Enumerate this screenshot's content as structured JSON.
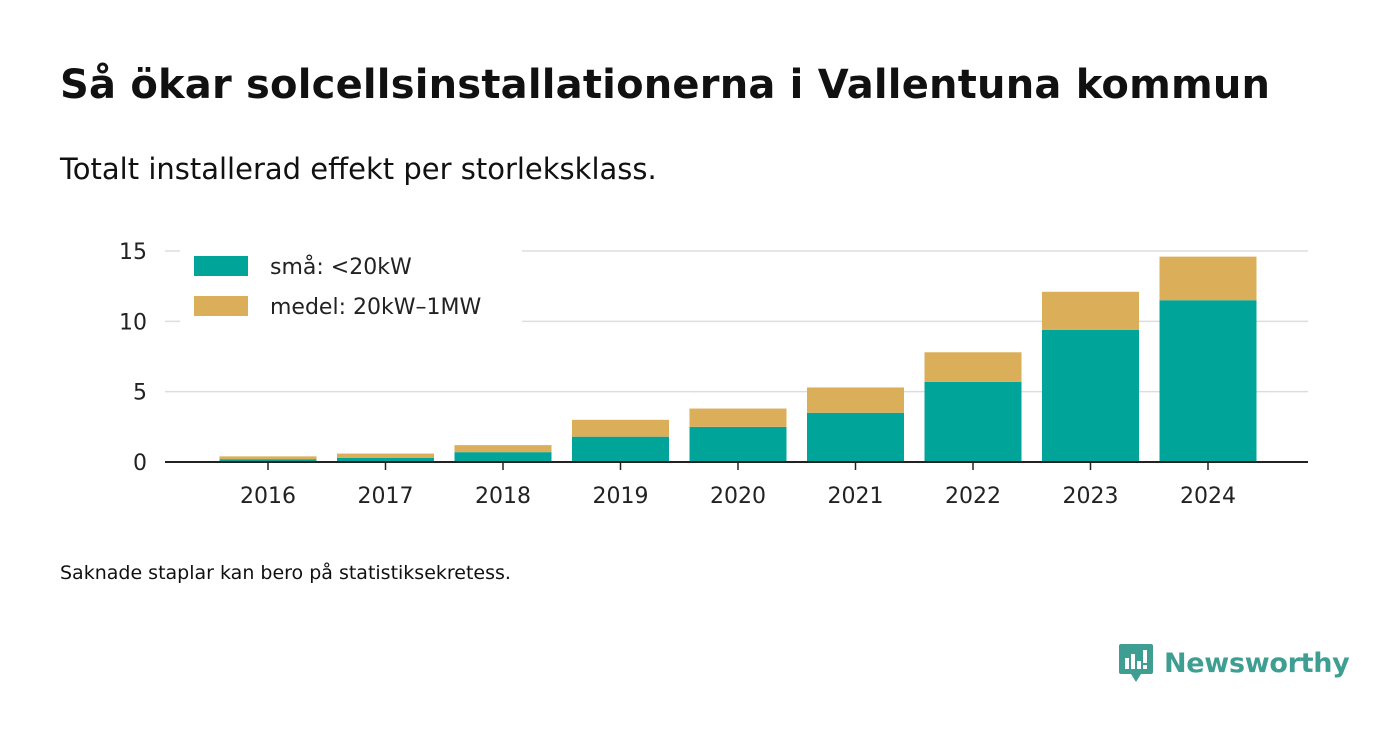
{
  "header": {
    "title": "Så ökar solcellsinstallationerna i Vallentuna kommun",
    "subtitle": "Totalt installerad effekt per storleksklass."
  },
  "footnote": "Saknade staplar kan bero på statistiksekretess.",
  "brand": {
    "name": "Newsworthy",
    "icon": "newsworthy-logo-icon",
    "color": "#3f9e92"
  },
  "chart_data": {
    "type": "bar",
    "stacked": true,
    "categories": [
      "2016",
      "2017",
      "2018",
      "2019",
      "2020",
      "2021",
      "2022",
      "2023",
      "2024"
    ],
    "series": [
      {
        "name": "små: <20kW",
        "color": "#00a499",
        "values": [
          0.2,
          0.3,
          0.7,
          1.8,
          2.5,
          3.5,
          5.7,
          9.4,
          11.5
        ]
      },
      {
        "name": "medel: 20kW–1MW",
        "color": "#dbae5a",
        "values": [
          0.2,
          0.3,
          0.5,
          1.2,
          1.3,
          1.8,
          2.1,
          2.7,
          3.1
        ]
      }
    ],
    "yticks": [
      0,
      5,
      10,
      15
    ],
    "ylim": [
      0,
      15
    ],
    "grid": true,
    "legend_position": "top-left",
    "xlabel": "",
    "ylabel": ""
  }
}
